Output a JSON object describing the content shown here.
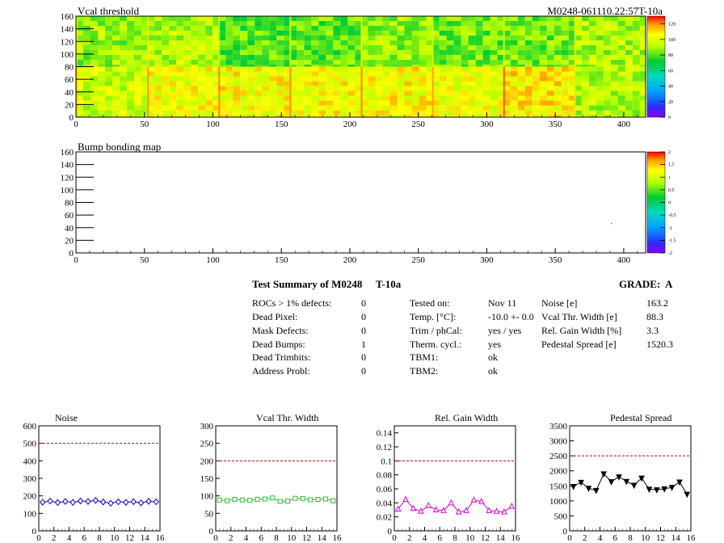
{
  "chart_data": [
    {
      "type": "heatmap",
      "title": "Vcal threshold",
      "run_label": "M0248-061110.22:57T-10a",
      "xlim": [
        0,
        416
      ],
      "ylim": [
        0,
        160
      ],
      "xticks": [
        0,
        50,
        100,
        150,
        200,
        250,
        300,
        350,
        400
      ],
      "yticks": [
        0,
        20,
        40,
        60,
        80,
        100,
        120,
        140,
        160
      ],
      "zlim": [
        0,
        130
      ],
      "zticks": [
        0,
        20,
        40,
        60,
        80,
        100,
        120
      ],
      "roc_mean_values": {
        "top_row": [
          88,
          92,
          80,
          82,
          88,
          83,
          84,
          91
        ],
        "bottom_row": [
          96,
          103,
          105,
          104,
          105,
          102,
          108,
          92
        ]
      }
    },
    {
      "type": "heatmap",
      "title": "Bump bonding map",
      "xlim": [
        0,
        416
      ],
      "ylim": [
        0,
        160
      ],
      "xticks": [
        0,
        50,
        100,
        150,
        200,
        250,
        300,
        350,
        400
      ],
      "yticks": [
        0,
        20,
        40,
        60,
        80,
        100,
        120,
        140,
        160
      ],
      "zlim": [
        -2,
        2
      ],
      "zticks": [
        "-2",
        "-1.5",
        "-1",
        "-0.5",
        "0",
        "0.5",
        "1",
        "1.5",
        "2"
      ]
    },
    {
      "type": "line",
      "title": "Noise",
      "x": [
        0,
        1,
        2,
        3,
        4,
        5,
        6,
        7,
        8,
        9,
        10,
        11,
        12,
        13,
        14,
        15
      ],
      "values": [
        164,
        170,
        162,
        168,
        163,
        171,
        168,
        174,
        165,
        158,
        166,
        163,
        167,
        160,
        169,
        166
      ],
      "errors": [
        22,
        22,
        22,
        22,
        22,
        22,
        22,
        22,
        22,
        22,
        22,
        22,
        22,
        22,
        22,
        22
      ],
      "limit": 500,
      "xlim": [
        0,
        16
      ],
      "ylim": [
        0,
        600
      ],
      "xticks": [
        0,
        2,
        4,
        6,
        8,
        10,
        12,
        14,
        16
      ],
      "yticks": [
        0,
        100,
        200,
        300,
        400,
        500,
        600
      ],
      "color": "#0000cc",
      "marker": "diamond"
    },
    {
      "type": "line",
      "title": "Vcal Thr. Width",
      "x": [
        0,
        1,
        2,
        3,
        4,
        5,
        6,
        7,
        8,
        9,
        10,
        11,
        12,
        13,
        14,
        15
      ],
      "values": [
        88,
        86,
        90,
        88,
        87,
        90,
        91,
        94,
        84,
        85,
        93,
        92,
        89,
        90,
        91,
        86
      ],
      "limit": 200,
      "xlim": [
        0,
        16
      ],
      "ylim": [
        0,
        300
      ],
      "xticks": [
        0,
        2,
        4,
        6,
        8,
        10,
        12,
        14,
        16
      ],
      "yticks": [
        0,
        50,
        100,
        150,
        200,
        250,
        300
      ],
      "color": "#33bb33",
      "marker": "square"
    },
    {
      "type": "line",
      "title": "Rel. Gain Width",
      "x": [
        0,
        1,
        2,
        3,
        4,
        5,
        6,
        7,
        8,
        9,
        10,
        11,
        12,
        13,
        14,
        15
      ],
      "values": [
        0.031,
        0.045,
        0.032,
        0.028,
        0.036,
        0.03,
        0.029,
        0.04,
        0.027,
        0.029,
        0.044,
        0.042,
        0.029,
        0.028,
        0.027,
        0.035
      ],
      "limit": 0.1,
      "xlim": [
        0,
        16
      ],
      "ylim": [
        0,
        0.15
      ],
      "xticks": [
        0,
        2,
        4,
        6,
        8,
        10,
        12,
        14,
        16
      ],
      "yticks": [
        "0",
        "0.02",
        "0.04",
        "0.06",
        "0.08",
        "0.1",
        "0.12",
        "0.14"
      ],
      "color": "#dd00dd",
      "marker": "triangle"
    },
    {
      "type": "line",
      "title": "Pedestal Spread",
      "x": [
        0,
        1,
        2,
        3,
        4,
        5,
        6,
        7,
        8,
        9,
        10,
        11,
        12,
        13,
        14,
        15
      ],
      "values": [
        1480,
        1620,
        1420,
        1350,
        1900,
        1640,
        1800,
        1650,
        1520,
        1760,
        1390,
        1370,
        1400,
        1450,
        1630,
        1220
      ],
      "limit": 2500,
      "xlim": [
        0,
        16
      ],
      "ylim": [
        0,
        3500
      ],
      "xticks": [
        0,
        2,
        4,
        6,
        8,
        10,
        12,
        14,
        16
      ],
      "yticks": [
        0,
        500,
        1000,
        1500,
        2000,
        2500,
        3000,
        3500
      ],
      "color": "#000000",
      "marker": "triangle-down"
    }
  ],
  "summary": {
    "title_left": "Test Summary of M0248",
    "title_mid": "T-10a",
    "grade": "GRADE:  A",
    "defects": [
      {
        "label": "ROCs > 1% defects:",
        "value": "0"
      },
      {
        "label": "Dead Pixel:",
        "value": "0"
      },
      {
        "label": "Mask Defects:",
        "value": "0"
      },
      {
        "label": "Dead Bumps:",
        "value": "1"
      },
      {
        "label": "Dead Trimbits:",
        "value": "0"
      },
      {
        "label": "Address Probl:",
        "value": "0"
      }
    ],
    "conditions": [
      {
        "label": "Tested on:",
        "value": "Nov 11"
      },
      {
        "label": "Temp. [°C]:",
        "value": "-10.0 +- 0.0"
      },
      {
        "label": "Trim / phCal:",
        "value": "yes / yes"
      },
      {
        "label": "Therm. cycl.:",
        "value": "yes"
      },
      {
        "label": "TBM1:",
        "value": "ok"
      },
      {
        "label": "TBM2:",
        "value": "ok"
      }
    ],
    "performance": [
      {
        "label": "Noise [e]",
        "value": "163.2"
      },
      {
        "label": "Vcal Thr. Width [e]",
        "value": "88.3"
      },
      {
        "label": "Rel. Gain Width [%]",
        "value": "3.3"
      },
      {
        "label": "Pedestal Spread [e]",
        "value": "1520.3"
      }
    ]
  }
}
